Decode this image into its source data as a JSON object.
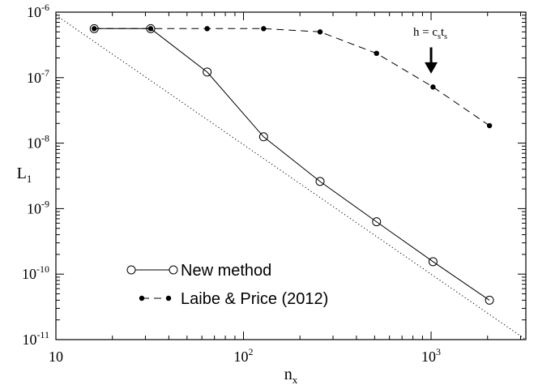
{
  "chart_data": {
    "type": "line",
    "xlabel": "n",
    "xlabel_sub": "x",
    "ylabel": "L",
    "ylabel_sub": "1",
    "x_scale": "log",
    "y_scale": "log",
    "xlim": [
      10,
      3200
    ],
    "ylim": [
      1e-11,
      1e-06
    ],
    "x_ticks": [
      {
        "value": 10,
        "base": "10",
        "exp": ""
      },
      {
        "value": 100,
        "base": "10",
        "exp": "2"
      },
      {
        "value": 1000,
        "base": "10",
        "exp": "3"
      }
    ],
    "y_ticks": [
      {
        "value": 1e-06,
        "base": "10",
        "exp": "-6"
      },
      {
        "value": 1e-07,
        "base": "10",
        "exp": "-7"
      },
      {
        "value": 1e-08,
        "base": "10",
        "exp": "-8"
      },
      {
        "value": 1e-09,
        "base": "10",
        "exp": "-9"
      },
      {
        "value": 1e-10,
        "base": "10",
        "exp": "-10"
      },
      {
        "value": 1e-11,
        "base": "10",
        "exp": "-11"
      }
    ],
    "grid": false,
    "legend_position": "bottom-left",
    "series": [
      {
        "name": "New method",
        "style": "solid",
        "marker": "open-circle",
        "color": "#000000",
        "x": [
          16,
          32,
          64,
          128,
          256,
          512,
          1024,
          2048
        ],
        "y": [
          5.6e-07,
          5.6e-07,
          1.22e-07,
          1.25e-08,
          2.6e-09,
          6.3e-10,
          1.55e-10,
          4e-11
        ]
      },
      {
        "name": "Laibe & Price (2012)",
        "style": "dashed",
        "marker": "filled-circle",
        "color": "#000000",
        "x": [
          16,
          32,
          64,
          128,
          256,
          512,
          1024,
          2048
        ],
        "y": [
          5.6e-07,
          5.6e-07,
          5.6e-07,
          5.6e-07,
          5e-07,
          2.35e-07,
          7.2e-08,
          1.85e-08
        ]
      }
    ],
    "reference_line": {
      "style": "dotted",
      "x": [
        10,
        3200
      ],
      "y": [
        9e-07,
        1e-11
      ]
    },
    "annotation": {
      "text": "h = c",
      "sub1": "s",
      "mid": "t",
      "sub2": "s",
      "arrow_x": 1000,
      "arrow_from_y": 2.9e-07,
      "arrow_to_y": 1.15e-07
    }
  }
}
